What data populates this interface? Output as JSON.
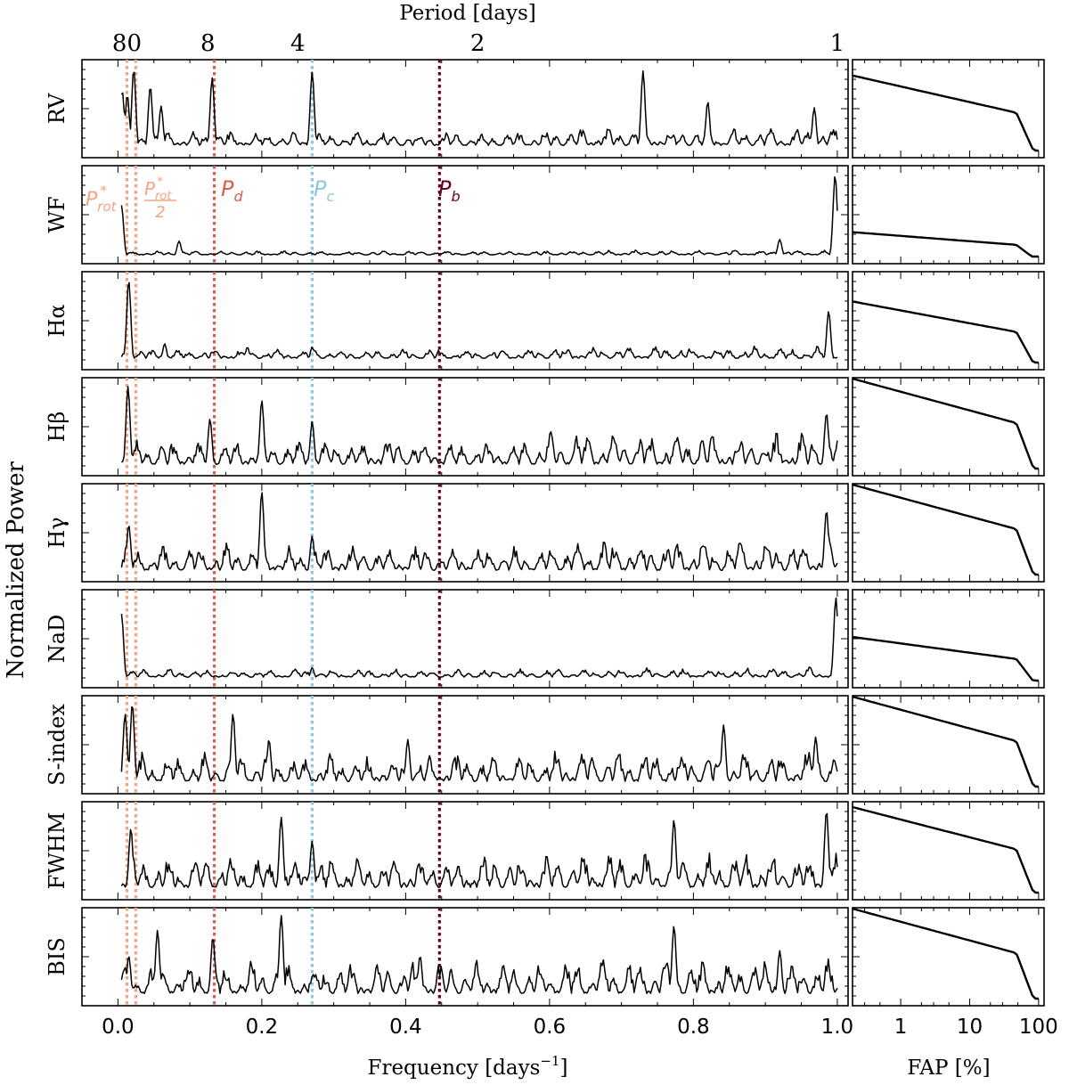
{
  "chart_data": {
    "type": "line",
    "title": "",
    "xlabel": "Frequency [days$^{-1}$]",
    "xlabel_text": "Frequency [days",
    "xlabel_sup": "−1",
    "xlabel_close": "]",
    "x2label": "Period [days]",
    "ylabel": "Normalized Power",
    "fap_xlabel": "FAP [%]",
    "xlim": [
      -0.05,
      1.015
    ],
    "xticks": [
      0.0,
      0.2,
      0.4,
      0.6,
      0.8,
      1.0
    ],
    "xticklabels": [
      "0.0",
      "0.2",
      "0.4",
      "0.6",
      "0.8",
      "1.0"
    ],
    "period_ticks": [
      {
        "label": "80",
        "freq": 0.0125
      },
      {
        "label": "8",
        "freq": 0.125
      },
      {
        "label": "4",
        "freq": 0.25
      },
      {
        "label": "2",
        "freq": 0.5
      },
      {
        "label": "1",
        "freq": 1.0
      }
    ],
    "fap_scale": "log",
    "fap_xlim": [
      0.2,
      120
    ],
    "fap_ticks": [
      {
        "label": "1",
        "value": 1
      },
      {
        "label": "10",
        "value": 10
      },
      {
        "label": "100",
        "value": 100
      }
    ],
    "markers": [
      {
        "name": "P_rot*",
        "freq": 0.0125,
        "color": "#f3a583"
      },
      {
        "name": "P_rot*/2",
        "freq": 0.025,
        "color": "#f3a583"
      },
      {
        "name": "P_d",
        "freq": 0.134,
        "color": "#d6604d"
      },
      {
        "name": "P_c",
        "freq": 0.27,
        "color": "#92c5de"
      },
      {
        "name": "P_b",
        "freq": 0.447,
        "color": "#67001f"
      }
    ],
    "marker_labels": {
      "prot_main": "P",
      "prot_sub": "rot",
      "prot_sup": "*",
      "half_den": "2",
      "pd_main": "P",
      "pd_sub": "d",
      "pc_main": "P",
      "pc_sub": "c",
      "pb_main": "P",
      "pb_sub": "b"
    },
    "panels": [
      {
        "label": "RV",
        "label_html": "RV",
        "seed": 11,
        "base": 0.06,
        "noise": 0.18,
        "hi_noise": 0.22,
        "fap_top": 0.88,
        "peaks": [
          [
            0.006,
            0.7
          ],
          [
            0.013,
            0.65
          ],
          [
            0.022,
            0.95
          ],
          [
            0.045,
            0.75
          ],
          [
            0.06,
            0.52
          ],
          [
            0.131,
            0.85
          ],
          [
            0.27,
            0.92
          ],
          [
            0.73,
            0.93
          ],
          [
            0.82,
            0.57
          ],
          [
            0.968,
            0.5
          ]
        ]
      },
      {
        "label": "WF",
        "label_html": "WF",
        "seed": 23,
        "base": 0.02,
        "noise": 0.05,
        "hi_noise": 0.06,
        "fap_top": 0.3,
        "peaks": [
          [
            0.005,
            0.6
          ],
          [
            0.085,
            0.18
          ],
          [
            0.92,
            0.2
          ],
          [
            0.997,
            0.95
          ]
        ]
      },
      {
        "label": "Hα",
        "label_html": "Hα",
        "seed": 37,
        "base": 0.05,
        "noise": 0.12,
        "hi_noise": 0.15,
        "fap_top": 0.72,
        "peaks": [
          [
            0.015,
            0.96
          ],
          [
            0.065,
            0.22
          ],
          [
            0.18,
            0.18
          ],
          [
            0.27,
            0.18
          ],
          [
            0.988,
            0.6
          ]
        ]
      },
      {
        "label": "Hβ",
        "label_html": "Hβ",
        "seed": 41,
        "base": 0.05,
        "noise": 0.32,
        "hi_noise": 0.4,
        "fap_top": 1.05,
        "peaks": [
          [
            0.014,
            0.96
          ],
          [
            0.128,
            0.58
          ],
          [
            0.2,
            0.8
          ],
          [
            0.27,
            0.55
          ],
          [
            0.985,
            0.65
          ]
        ]
      },
      {
        "label": "Hγ",
        "label_html": "Hγ",
        "seed": 53,
        "base": 0.05,
        "noise": 0.32,
        "hi_noise": 0.4,
        "fap_top": 1.05,
        "peaks": [
          [
            0.015,
            0.58
          ],
          [
            0.2,
            0.97
          ],
          [
            0.27,
            0.45
          ],
          [
            0.985,
            0.75
          ]
        ]
      },
      {
        "label": "NaD",
        "label_html": "NaD",
        "seed": 61,
        "base": 0.04,
        "noise": 0.1,
        "hi_noise": 0.12,
        "fap_top": 0.52,
        "peaks": [
          [
            0.005,
            0.78
          ],
          [
            0.27,
            0.15
          ],
          [
            0.998,
            0.97
          ]
        ]
      },
      {
        "label": "S-index",
        "label_html": "S-index",
        "seed": 71,
        "base": 0.06,
        "noise": 0.35,
        "hi_noise": 0.4,
        "fap_top": 1.05,
        "peaks": [
          [
            0.01,
            0.85
          ],
          [
            0.02,
            0.97
          ],
          [
            0.16,
            0.85
          ],
          [
            0.21,
            0.55
          ],
          [
            0.403,
            0.55
          ],
          [
            0.842,
            0.72
          ],
          [
            0.97,
            0.58
          ]
        ]
      },
      {
        "label": "FWHM",
        "label_html": "FWHM",
        "seed": 83,
        "base": 0.06,
        "noise": 0.4,
        "hi_noise": 0.45,
        "fap_top": 1.0,
        "peaks": [
          [
            0.018,
            0.75
          ],
          [
            0.227,
            0.88
          ],
          [
            0.27,
            0.6
          ],
          [
            0.773,
            0.85
          ],
          [
            0.985,
            0.96
          ]
        ]
      },
      {
        "label": "BIS",
        "label_html": "BIS",
        "seed": 97,
        "base": 0.06,
        "noise": 0.4,
        "hi_noise": 0.45,
        "fap_top": 1.05,
        "peaks": [
          [
            0.015,
            0.5
          ],
          [
            0.055,
            0.8
          ],
          [
            0.132,
            0.72
          ],
          [
            0.227,
            0.97
          ],
          [
            0.42,
            0.5
          ],
          [
            0.773,
            0.85
          ],
          [
            0.92,
            0.56
          ]
        ]
      }
    ]
  }
}
